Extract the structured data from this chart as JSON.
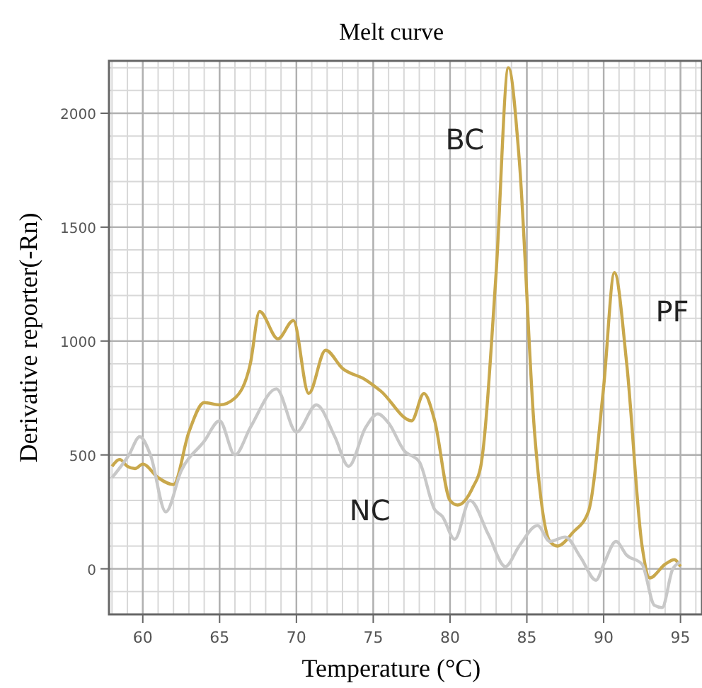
{
  "chart_data": {
    "type": "line",
    "title": "Melt curve",
    "xlabel": "Temperature (°C)",
    "ylabel": "Derivative reporter(-Rn)",
    "xlim": [
      57.8,
      96.4
    ],
    "ylim": [
      -200,
      2230
    ],
    "xticks": [
      60,
      65,
      70,
      75,
      80,
      85,
      90,
      95
    ],
    "yticks": [
      0,
      500,
      1000,
      1500,
      2000
    ],
    "grid": true,
    "series": [
      {
        "color": "#c9a84c",
        "x": [
          58,
          58.5,
          59,
          59.5,
          60,
          61,
          62,
          63,
          64,
          65,
          66,
          67,
          67.6,
          68.8,
          69.8,
          70.8,
          71.9,
          73,
          74.5,
          75.5,
          77.5,
          78.3,
          79,
          80,
          80.5,
          81.5,
          82,
          83,
          83.8,
          84.5,
          85.5,
          86.5,
          87,
          88,
          89,
          90,
          90.7,
          91.5,
          92.5,
          93,
          94,
          94.6,
          95
        ],
        "values": [
          450,
          480,
          450,
          440,
          460,
          400,
          370,
          600,
          730,
          720,
          750,
          900,
          1130,
          1010,
          1090,
          770,
          960,
          880,
          830,
          780,
          650,
          770,
          650,
          300,
          280,
          360,
          450,
          1300,
          2200,
          1800,
          600,
          120,
          100,
          160,
          250,
          800,
          1300,
          900,
          100,
          -40,
          20,
          40,
          10
        ]
      },
      {
        "color": "#c8c8c8",
        "x": [
          58,
          59.1,
          59.8,
          60.5,
          61.5,
          62.5,
          64,
          65,
          66,
          67,
          68.7,
          70,
          71.3,
          72.5,
          73.4,
          74.5,
          75.3,
          76,
          77,
          78,
          79,
          79.5,
          80.3,
          81.3,
          82.5,
          83.6,
          84.5,
          85.7,
          86.5,
          87.5,
          88.5,
          89.5,
          90,
          90.8,
          91.5,
          92.5,
          93.3,
          93.8,
          94.5,
          95
        ],
        "values": [
          400,
          500,
          580,
          500,
          250,
          430,
          560,
          650,
          500,
          620,
          790,
          600,
          720,
          580,
          450,
          620,
          680,
          640,
          520,
          470,
          260,
          230,
          130,
          300,
          150,
          10,
          100,
          190,
          120,
          140,
          50,
          -50,
          20,
          120,
          60,
          20,
          -160,
          -170,
          0,
          30
        ]
      }
    ],
    "annotations": [
      "BC",
      "PF",
      "NC"
    ]
  }
}
